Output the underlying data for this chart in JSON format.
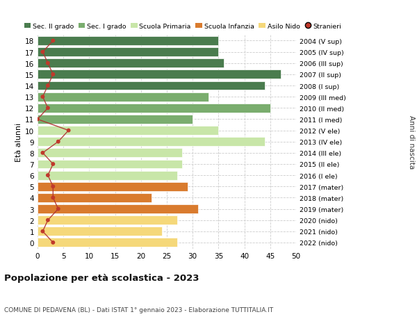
{
  "ages": [
    18,
    17,
    16,
    15,
    14,
    13,
    12,
    11,
    10,
    9,
    8,
    7,
    6,
    5,
    4,
    3,
    2,
    1,
    0
  ],
  "bar_values": [
    35,
    35,
    36,
    47,
    44,
    33,
    45,
    30,
    35,
    44,
    28,
    28,
    27,
    29,
    22,
    31,
    27,
    24,
    27
  ],
  "stranieri": [
    3,
    1,
    2,
    3,
    2,
    1,
    2,
    0,
    6,
    4,
    1,
    3,
    2,
    3,
    3,
    4,
    2,
    1,
    3
  ],
  "right_labels": [
    "2004 (V sup)",
    "2005 (IV sup)",
    "2006 (III sup)",
    "2007 (II sup)",
    "2008 (I sup)",
    "2009 (III med)",
    "2010 (II med)",
    "2011 (I med)",
    "2012 (V ele)",
    "2013 (IV ele)",
    "2014 (III ele)",
    "2015 (II ele)",
    "2016 (I ele)",
    "2017 (mater)",
    "2018 (mater)",
    "2019 (mater)",
    "2020 (nido)",
    "2021 (nido)",
    "2022 (nido)"
  ],
  "bar_colors": [
    "#4a7c4e",
    "#4a7c4e",
    "#4a7c4e",
    "#4a7c4e",
    "#4a7c4e",
    "#7aad6e",
    "#7aad6e",
    "#7aad6e",
    "#c8e6a8",
    "#c8e6a8",
    "#c8e6a8",
    "#c8e6a8",
    "#c8e6a8",
    "#d97b2e",
    "#d97b2e",
    "#d97b2e",
    "#f5d87a",
    "#f5d87a",
    "#f5d87a"
  ],
  "legend_labels": [
    "Sec. II grado",
    "Sec. I grado",
    "Scuola Primaria",
    "Scuola Infanzia",
    "Asilo Nido",
    "Stranieri"
  ],
  "legend_colors": [
    "#4a7c4e",
    "#7aad6e",
    "#c8e6a8",
    "#d97b2e",
    "#f5d87a",
    "#c0392b"
  ],
  "title": "Popolazione per età scolastica - 2023",
  "subtitle": "COMUNE DI PEDAVENA (BL) - Dati ISTAT 1° gennaio 2023 - Elaborazione TUTTITALIA.IT",
  "ylabel_left": "Età alunni",
  "ylabel_right": "Anni di nascita",
  "xlim": [
    0,
    50
  ],
  "bg_color": "#ffffff",
  "grid_color": "#cccccc",
  "bar_height": 0.8,
  "stranieri_color": "#c0392b",
  "stranieri_line_color": "#b03030"
}
